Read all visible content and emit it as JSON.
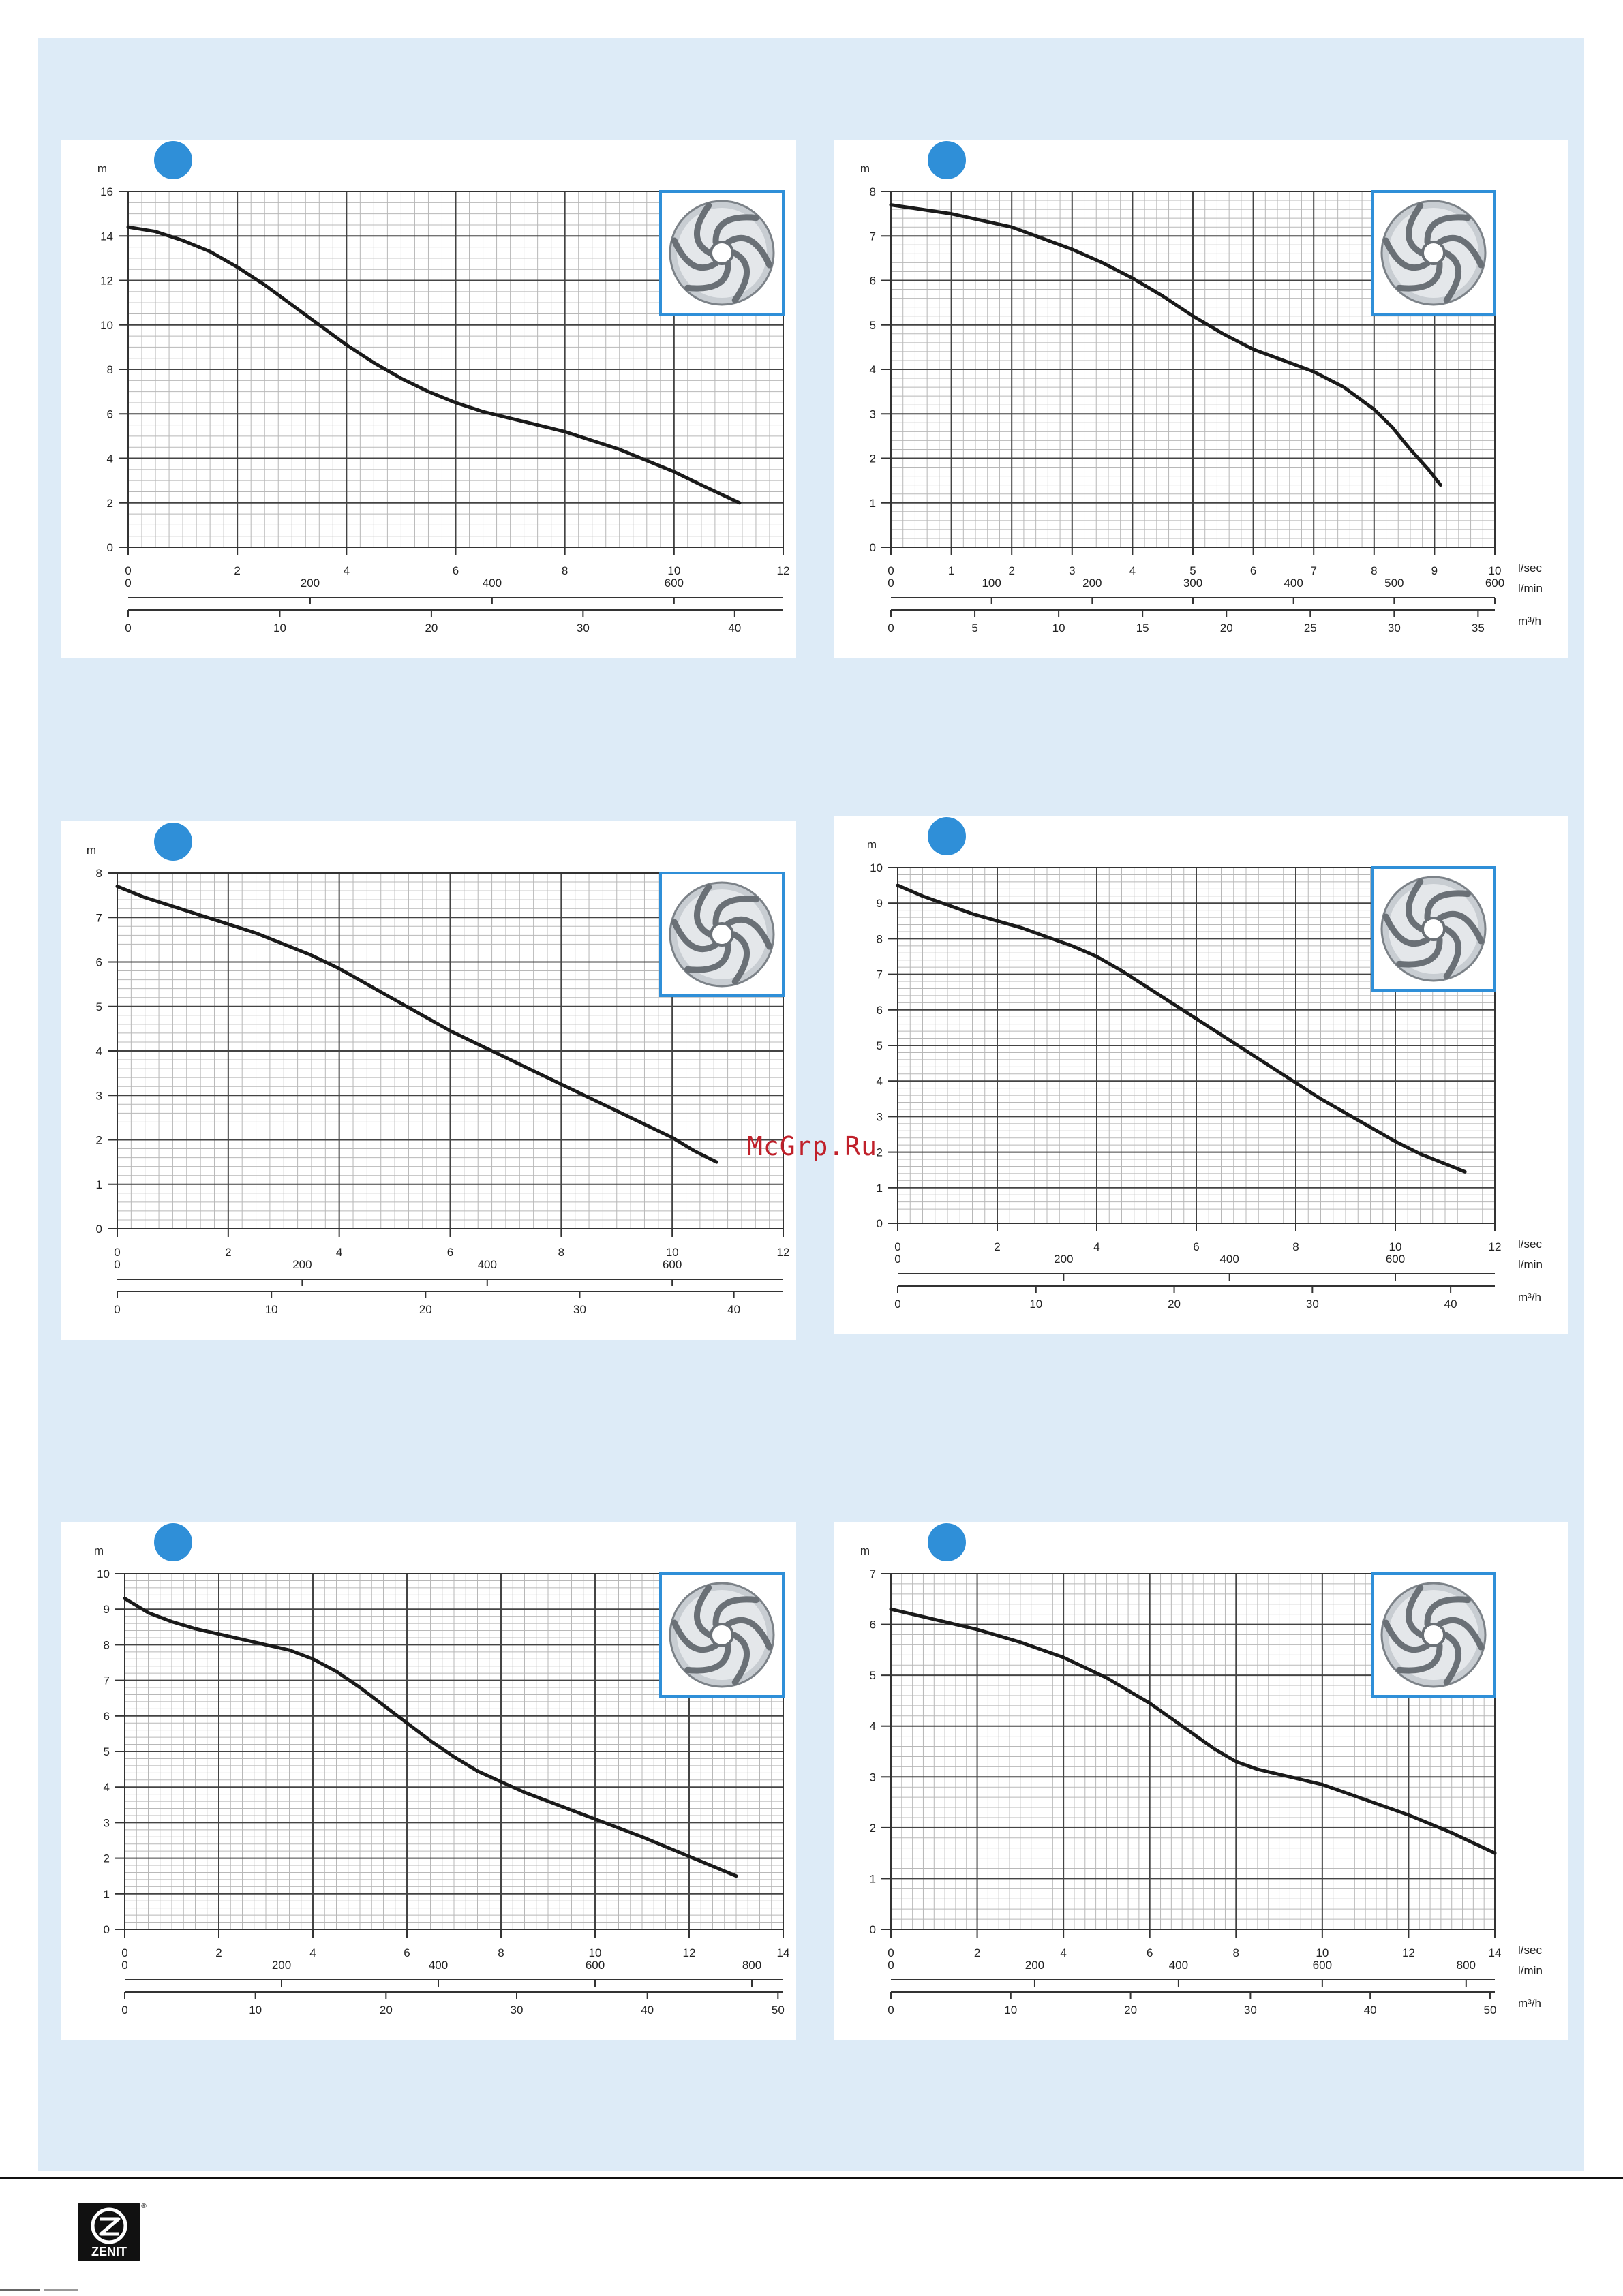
{
  "colors": {
    "panel": "#ddebf7",
    "badge": "#2f8fd8",
    "impeller_frame": "#2f8fd8",
    "curve": "#1a1a1a",
    "grid_major": "#444444",
    "grid_minor": "#b8b8b8"
  },
  "icons": {
    "badge": "blue-circle-icon",
    "impeller": "impeller-icon",
    "logo": "zenit-logo"
  },
  "logo": {
    "text": "ZENIT",
    "mark": "®"
  },
  "watermark": "McGrp.Ru",
  "chart_data": [
    {
      "type": "line",
      "ylabel": "m",
      "ylim": [
        0,
        16
      ],
      "ymajor": 2,
      "yminor": 0.5,
      "lsec_max": 12,
      "lsec_step": 2,
      "lmin_labels": [
        200,
        400,
        600
      ],
      "m3h_labels": [
        0,
        10,
        20,
        30,
        40
      ],
      "axis_units": [
        "l/sec",
        "l/min",
        "m³/h"
      ],
      "x": [
        0,
        0.5,
        1,
        1.5,
        2,
        2.5,
        3,
        3.5,
        4,
        4.5,
        5,
        5.5,
        6,
        6.5,
        7,
        7.5,
        8,
        8.5,
        9,
        9.5,
        10,
        10.5,
        11.2
      ],
      "y": [
        14.4,
        14.2,
        13.8,
        13.3,
        12.6,
        11.8,
        10.9,
        10.0,
        9.1,
        8.3,
        7.6,
        7.0,
        6.5,
        6.1,
        5.8,
        5.5,
        5.2,
        4.8,
        4.4,
        3.9,
        3.4,
        2.8,
        2.0
      ]
    },
    {
      "type": "line",
      "ylabel": "m",
      "ylim": [
        0,
        8
      ],
      "ymajor": 1,
      "yminor": 0.2,
      "lsec_max": 10,
      "lsec_step": 1,
      "lmin_labels": [
        100,
        200,
        300,
        400,
        500,
        600
      ],
      "m3h_labels": [
        0,
        5,
        10,
        15,
        20,
        25,
        30,
        35
      ],
      "axis_units": [
        "l/sec",
        "l/min",
        "m³/h"
      ],
      "x": [
        0,
        0.5,
        1,
        1.5,
        2,
        2.5,
        3,
        3.5,
        4,
        4.5,
        5,
        5.5,
        6,
        6.5,
        7,
        7.5,
        8,
        8.3,
        8.6,
        8.9,
        9.1
      ],
      "y": [
        7.7,
        7.6,
        7.5,
        7.35,
        7.2,
        6.95,
        6.7,
        6.4,
        6.05,
        5.65,
        5.2,
        4.8,
        4.45,
        4.2,
        3.95,
        3.6,
        3.1,
        2.7,
        2.2,
        1.75,
        1.4
      ]
    },
    {
      "type": "line",
      "ylabel": "m",
      "ylim": [
        0,
        8
      ],
      "ymajor": 1,
      "yminor": 0.2,
      "lsec_max": 12,
      "lsec_step": 2,
      "lmin_labels": [
        200,
        400,
        600
      ],
      "m3h_labels": [
        0,
        10,
        20,
        30,
        40
      ],
      "axis_units": [
        "l/sec",
        "l/min",
        "m³/h"
      ],
      "x": [
        0,
        0.5,
        1,
        1.5,
        2,
        2.5,
        3,
        3.5,
        4,
        4.5,
        5,
        5.5,
        6,
        6.5,
        7,
        7.5,
        8,
        8.5,
        9,
        9.5,
        10,
        10.4,
        10.8
      ],
      "y": [
        7.7,
        7.45,
        7.25,
        7.05,
        6.85,
        6.65,
        6.4,
        6.15,
        5.85,
        5.5,
        5.15,
        4.8,
        4.45,
        4.15,
        3.85,
        3.55,
        3.25,
        2.95,
        2.65,
        2.35,
        2.05,
        1.75,
        1.5
      ]
    },
    {
      "type": "line",
      "ylabel": "m",
      "ylim": [
        0,
        10
      ],
      "ymajor": 1,
      "yminor": 0.2,
      "lsec_max": 12,
      "lsec_step": 2,
      "lmin_labels": [
        200,
        400,
        600
      ],
      "m3h_labels": [
        0,
        10,
        20,
        30,
        40
      ],
      "axis_units": [
        "l/sec",
        "l/min",
        "m³/h"
      ],
      "x": [
        0,
        0.5,
        1,
        1.5,
        2,
        2.5,
        3,
        3.5,
        4,
        4.5,
        5,
        5.5,
        6,
        6.5,
        7,
        7.5,
        8,
        8.5,
        9,
        9.5,
        10,
        10.5,
        11.4
      ],
      "y": [
        9.5,
        9.2,
        8.95,
        8.7,
        8.5,
        8.3,
        8.05,
        7.8,
        7.5,
        7.1,
        6.65,
        6.2,
        5.75,
        5.3,
        4.85,
        4.4,
        3.95,
        3.5,
        3.1,
        2.7,
        2.3,
        1.95,
        1.45
      ]
    },
    {
      "type": "line",
      "ylabel": "m",
      "ylim": [
        0,
        10
      ],
      "ymajor": 1,
      "yminor": 0.2,
      "lsec_max": 14,
      "lsec_step": 2,
      "lmin_labels": [
        200,
        400,
        600,
        800
      ],
      "m3h_labels": [
        0,
        10,
        20,
        30,
        40,
        50
      ],
      "axis_units": [
        "l/sec",
        "l/min",
        "m³/h"
      ],
      "x": [
        0,
        0.5,
        1,
        1.5,
        2,
        2.5,
        3,
        3.5,
        4,
        4.5,
        5,
        5.5,
        6,
        6.5,
        7,
        7.5,
        8,
        8.5,
        9,
        10,
        11,
        12,
        13
      ],
      "y": [
        9.3,
        8.9,
        8.65,
        8.45,
        8.3,
        8.15,
        8.0,
        7.85,
        7.6,
        7.25,
        6.8,
        6.3,
        5.8,
        5.3,
        4.85,
        4.45,
        4.15,
        3.85,
        3.6,
        3.1,
        2.6,
        2.05,
        1.5
      ]
    },
    {
      "type": "line",
      "ylabel": "m",
      "ylim": [
        0,
        7
      ],
      "ymajor": 1,
      "yminor": 0.2,
      "lsec_max": 14,
      "lsec_step": 2,
      "lmin_labels": [
        200,
        400,
        600,
        800
      ],
      "m3h_labels": [
        0,
        10,
        20,
        30,
        40,
        50
      ],
      "axis_units": [
        "l/sec",
        "l/min",
        "m³/h"
      ],
      "x": [
        0,
        1,
        2,
        3,
        4,
        5,
        6,
        6.5,
        7,
        7.5,
        8,
        8.5,
        9,
        9.5,
        10,
        11,
        12,
        13,
        14
      ],
      "y": [
        6.3,
        6.1,
        5.9,
        5.65,
        5.35,
        4.95,
        4.45,
        4.15,
        3.85,
        3.55,
        3.3,
        3.15,
        3.05,
        2.95,
        2.85,
        2.55,
        2.25,
        1.9,
        1.5
      ]
    }
  ]
}
